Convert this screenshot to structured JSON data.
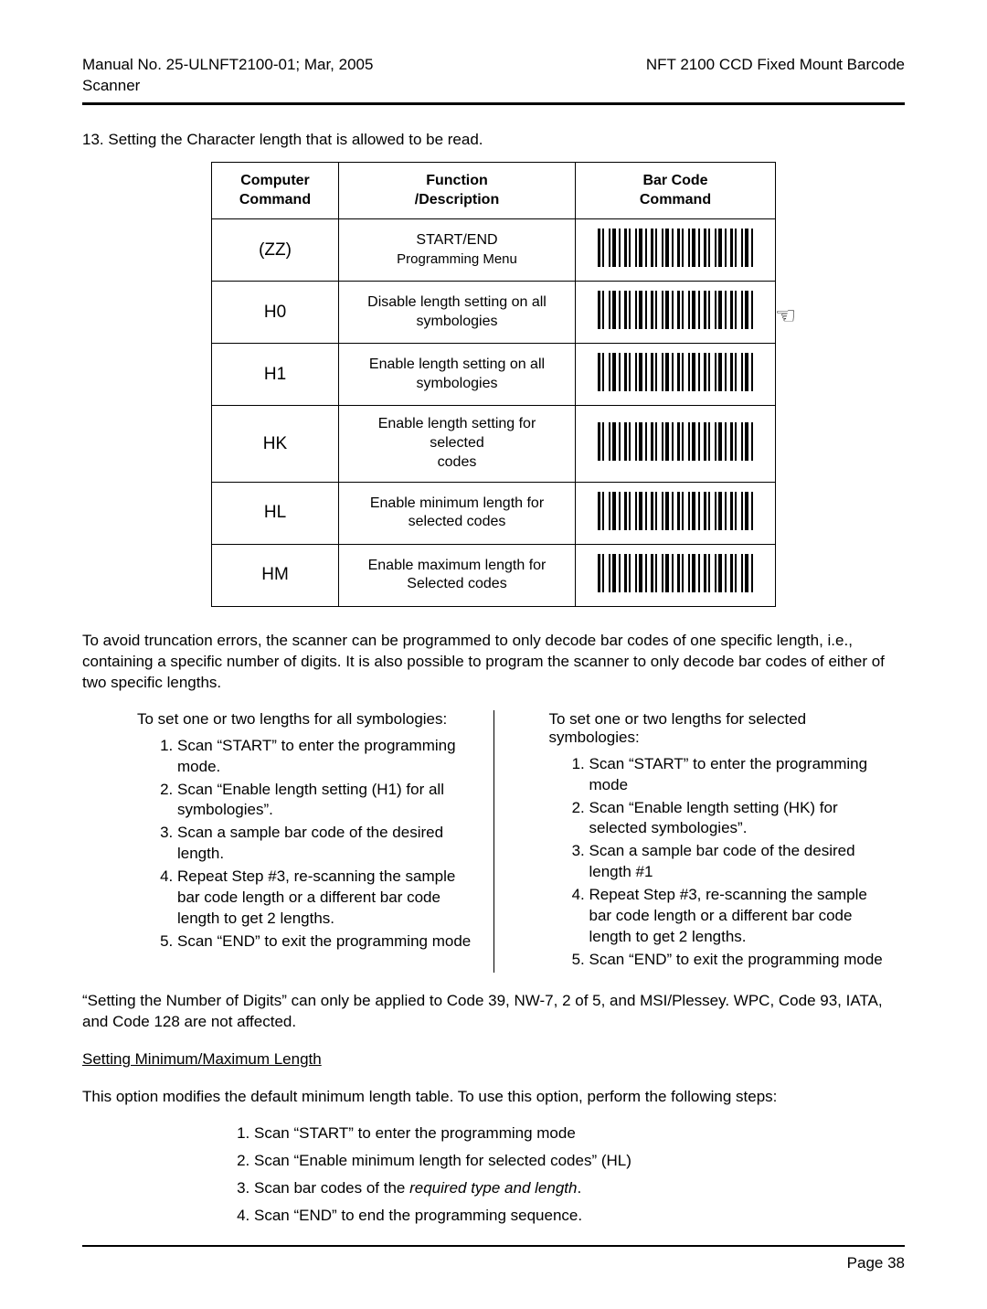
{
  "header": {
    "left_line1": "Manual No. 25-ULNFT2100-01; Mar, 2005",
    "left_line2": "Scanner",
    "right": "NFT 2100 CCD Fixed Mount Barcode"
  },
  "section_title": "13. Setting the Character length that is allowed to be read.",
  "table": {
    "headers": {
      "col1_l1": "Computer",
      "col1_l2": "Command",
      "col2_l1": "Function",
      "col2_l2": "/Description",
      "col3_l1": "Bar Code",
      "col3_l2": "Command"
    },
    "rows": [
      {
        "cmd": "(ZZ)",
        "desc_l1": "START/END",
        "desc_l2": "Programming Menu",
        "hand": false
      },
      {
        "cmd": "H0",
        "desc_l1": "Disable length setting  on all",
        "desc_l2": "symbologies",
        "hand": true
      },
      {
        "cmd": "H1",
        "desc_l1": "Enable length setting on all",
        "desc_l2": "symbologies",
        "hand": false
      },
      {
        "cmd": "HK",
        "desc_l1": "Enable length setting for selected",
        "desc_l2": "codes",
        "hand": false
      },
      {
        "cmd": "HL",
        "desc_l1": "Enable minimum length for",
        "desc_l2": "selected codes",
        "hand": false
      },
      {
        "cmd": "HM",
        "desc_l1": "Enable maximum length for",
        "desc_l2": "Selected codes",
        "hand": false
      }
    ]
  },
  "para1": "To avoid truncation errors, the scanner can be programmed to only decode bar codes of one specific length, i.e., containing a specific number of digits.  It is also possible to program the scanner to only decode bar codes of either of two specific lengths.",
  "left_col": {
    "title": "To set one or two lengths for all symbologies:",
    "steps": [
      "Scan “START” to enter the programming mode.",
      "Scan “Enable length setting (H1) for all symbologies”.",
      "Scan a sample bar code of the desired length.",
      "Repeat Step #3, re-scanning the sample bar code length or a different bar code length to get 2 lengths.",
      "Scan “END” to exit the programming mode"
    ]
  },
  "right_col": {
    "title": "To set one or two lengths for selected symbologies:",
    "steps": [
      "Scan “START” to enter the programming mode",
      "Scan “Enable length setting (HK) for selected symbologies”.",
      "Scan a sample bar code of the desired length #1",
      "Repeat Step #3, re-scanning the sample bar code length or a different bar code length to get 2 lengths.",
      "Scan “END” to exit the programming mode"
    ]
  },
  "para2": " “Setting the Number of Digits” can only be applied to Code 39, NW-7, 2 of 5, and MSI/Plessey.  WPC, Code 93, IATA, and Code 128 are not affected.",
  "subhead": "Setting Minimum/Maximum Length",
  "para3": "This option modifies the default minimum length table.  To use this option, perform the following steps:",
  "bottom_steps": {
    "s1": "Scan “START” to enter the programming mode",
    "s2": "Scan “Enable minimum length for selected codes” (HL)",
    "s3a": "Scan bar codes of the ",
    "s3b": "required type and length",
    "s3c": ".",
    "s4": "Scan “END” to end the programming sequence."
  },
  "footer": "Page 38"
}
